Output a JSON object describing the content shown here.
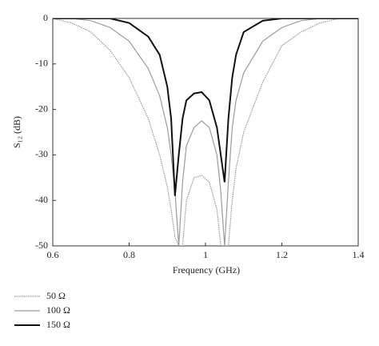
{
  "chart_data": {
    "type": "line",
    "x_label": "Frequency (GHz)",
    "y_label": "S₁₂ (dB)",
    "x": [
      0.6,
      0.65,
      0.7,
      0.75,
      0.8,
      0.85,
      0.88,
      0.9,
      0.91,
      0.92,
      0.93,
      0.94,
      0.95,
      0.97,
      0.99,
      1.01,
      1.03,
      1.04,
      1.05,
      1.06,
      1.07,
      1.08,
      1.1,
      1.15,
      1.2,
      1.25,
      1.3,
      1.35,
      1.4
    ],
    "series": [
      {
        "name": "50 Ω",
        "color": "#999999",
        "dash": true,
        "values": [
          0,
          -1,
          -3,
          -7,
          -13,
          -22,
          -30,
          -37,
          -42,
          -48,
          -50,
          -50,
          -40,
          -35,
          -34.5,
          -36,
          -42,
          -50,
          -50,
          -50,
          -40,
          -33,
          -25,
          -14,
          -6,
          -3,
          -1,
          0,
          0
        ]
      },
      {
        "name": "100 Ω",
        "color": "#9a9a9a",
        "dash": false,
        "values": [
          0,
          0,
          -0.5,
          -2,
          -5,
          -11,
          -17,
          -24,
          -30,
          -38,
          -50,
          -36,
          -28,
          -24,
          -22.5,
          -24,
          -30,
          -38,
          -50,
          -36,
          -24,
          -18,
          -12,
          -5,
          -2,
          -0.5,
          0,
          0,
          0
        ]
      },
      {
        "name": "150 Ω",
        "color": "#111111",
        "dash": false,
        "values": [
          0,
          0,
          0,
          0,
          -1,
          -4,
          -8,
          -15,
          -22,
          -39,
          -30,
          -22,
          -18,
          -16.5,
          -16.2,
          -18,
          -24,
          -30,
          -36,
          -22,
          -13,
          -8,
          -3,
          -0.5,
          0,
          0,
          0,
          0,
          0
        ]
      }
    ],
    "xlim": [
      0.6,
      1.4
    ],
    "ylim": [
      -50,
      0
    ],
    "xticks": [
      0.6,
      0.8,
      1,
      1.2,
      1.4
    ],
    "yticks": [
      0,
      -10,
      -20,
      -30,
      -40,
      -50
    ]
  }
}
